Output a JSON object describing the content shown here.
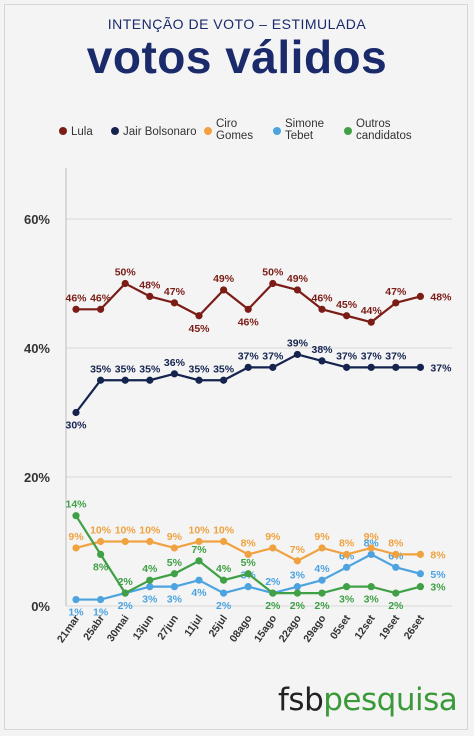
{
  "header": {
    "subtitle": "INTENÇÃO DE VOTO – ESTIMULADA",
    "title": "votos válidos"
  },
  "logo": {
    "part1": "fsb",
    "part2": "pesquisa"
  },
  "colors": {
    "lula": "#7b1d16",
    "bolsonaro": "#15244f",
    "ciro": "#f0a240",
    "simone": "#4da3e0",
    "outros": "#3fa046",
    "grid": "#d9d9d9",
    "axis_text": "#333333"
  },
  "chart_data": {
    "type": "line",
    "categories": [
      "21mar",
      "25abr",
      "30mai",
      "13jun",
      "27jun",
      "11jul",
      "25jul",
      "08ago",
      "15ago",
      "22ago",
      "29ago",
      "05set",
      "12set",
      "19set",
      "26set"
    ],
    "ylim": [
      0,
      60
    ],
    "yticks": [
      0,
      20,
      40,
      60
    ],
    "ytick_labels": [
      "0%",
      "20%",
      "40%",
      "60%"
    ],
    "grid": "horizontal",
    "legend_position": "top",
    "series": [
      {
        "name": "Lula",
        "color_key": "lula",
        "values": [
          46,
          46,
          50,
          48,
          47,
          45,
          49,
          46,
          50,
          49,
          46,
          45,
          44,
          47,
          48
        ],
        "labels": [
          "46%",
          "46%",
          "50%",
          "48%",
          "47%",
          "45%",
          "49%",
          "46%",
          "50%",
          "49%",
          "46%",
          "45%",
          "44%",
          "47%",
          "48%"
        ]
      },
      {
        "name": "Jair Bolsonaro",
        "color_key": "bolsonaro",
        "values": [
          30,
          35,
          35,
          35,
          36,
          35,
          35,
          37,
          37,
          39,
          38,
          37,
          37,
          37,
          37
        ],
        "labels": [
          "30%",
          "35%",
          "35%",
          "35%",
          "36%",
          "35%",
          "35%",
          "37%",
          "37%",
          "39%",
          "38%",
          "37%",
          "37%",
          "37%",
          "37%"
        ]
      },
      {
        "name": "Ciro Gomes",
        "color_key": "ciro",
        "values": [
          9,
          10,
          10,
          10,
          9,
          10,
          10,
          8,
          9,
          7,
          9,
          8,
          9,
          8,
          8
        ],
        "labels": [
          "9%",
          "10%",
          "10%",
          "10%",
          "9%",
          "10%",
          "10%",
          "8%",
          "9%",
          "7%",
          "9%",
          "8%",
          "9%",
          "8%",
          "8%"
        ]
      },
      {
        "name": "Simone Tebet",
        "color_key": "simone",
        "values": [
          1,
          1,
          2,
          3,
          3,
          4,
          2,
          3,
          2,
          3,
          4,
          6,
          8,
          6,
          5
        ],
        "labels": [
          "1%",
          "1%",
          "2%",
          "3%",
          "3%",
          "4%",
          "2%",
          "3%",
          "2%",
          "3%",
          "4%",
          "6%",
          "8%",
          "6%",
          "5%"
        ]
      },
      {
        "name": "Outros candidatos",
        "color_key": "outros",
        "values": [
          14,
          8,
          2,
          4,
          5,
          7,
          4,
          5,
          2,
          2,
          2,
          3,
          3,
          2,
          3
        ],
        "labels": [
          "14%",
          "8%",
          "2%",
          "4%",
          "5%",
          "7%",
          "4%",
          "5%",
          "2%",
          "2%",
          "2%",
          "3%",
          "3%",
          "2%",
          "3%"
        ]
      }
    ],
    "legend": [
      {
        "label": "Lula",
        "color_key": "lula"
      },
      {
        "label": "Jair Bolsonaro",
        "color_key": "bolsonaro"
      },
      {
        "label": "Ciro\nGomes",
        "color_key": "ciro"
      },
      {
        "label": "Simone\nTebet",
        "color_key": "simone"
      },
      {
        "label": "Outros\ncandidatos",
        "color_key": "outros"
      }
    ]
  }
}
